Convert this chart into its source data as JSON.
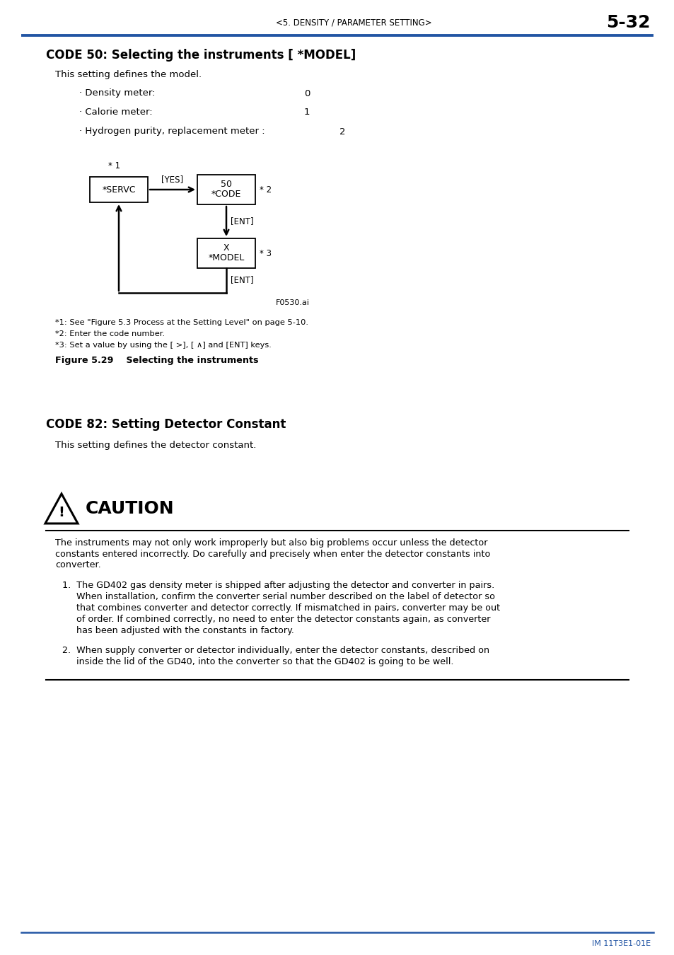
{
  "page_header_left": "<5. DENSITY / PARAMETER SETTING>",
  "page_header_right": "5-32",
  "header_line_color": "#2255a4",
  "section1_title": "CODE 50: Selecting the instruments [ *MODEL]",
  "intro_text": "This setting defines the model.",
  "bullet1": "· Density meter:",
  "bullet1_val": "0",
  "bullet2": "· Calorie meter:",
  "bullet2_val": "1",
  "bullet3": "· Hydrogen purity, replacement meter :",
  "bullet3_val": "2",
  "diagram_note1": "* 1",
  "box1_label": "*SERVC",
  "arrow1_label": "[YES]",
  "box2_line1": "50",
  "box2_line2": "*CODE",
  "box2_note": "* 2",
  "arrow2_label": "[ENT]",
  "box3_line1": "X",
  "box3_line2": "*MODEL",
  "box3_note": "* 3",
  "arrow3_label": "[ENT]",
  "diagram_label": "F0530.ai",
  "footnote1": "*1: See \"Figure 5.3 Process at the Setting Level\" on page 5-10.",
  "footnote2": "*2: Enter the code number.",
  "footnote3": "*3: Set a value by using the [ >], [ ∧] and [ENT] keys.",
  "figure_caption": "Figure 5.29    Selecting the instruments",
  "section2_title": "CODE 82: Setting Detector Constant",
  "section2_intro": "This setting defines the detector constant.",
  "caution_title": "CAUTION",
  "caution_body_lines": [
    "The instruments may not only work improperly but also big problems occur unless the detector",
    "constants entered incorrectly. Do carefully and precisely when enter the detector constants into",
    "converter."
  ],
  "item1_lines": [
    "1.  The GD402 gas density meter is shipped after adjusting the detector and converter in pairs.",
    "     When installation, confirm the converter serial number described on the label of detector so",
    "     that combines converter and detector correctly. If mismatched in pairs, converter may be out",
    "     of order. If combined correctly, no need to enter the detector constants again, as converter",
    "     has been adjusted with the constants in factory."
  ],
  "item2_lines": [
    "2.  When supply converter or detector individually, enter the detector constants, described on",
    "     inside the lid of the GD40, into the converter so that the GD402 is going to be well."
  ],
  "footer_line_color": "#2255a4",
  "footer_text": "IM 11T3E1-01E",
  "bg_color": "#ffffff",
  "text_color": "#000000"
}
